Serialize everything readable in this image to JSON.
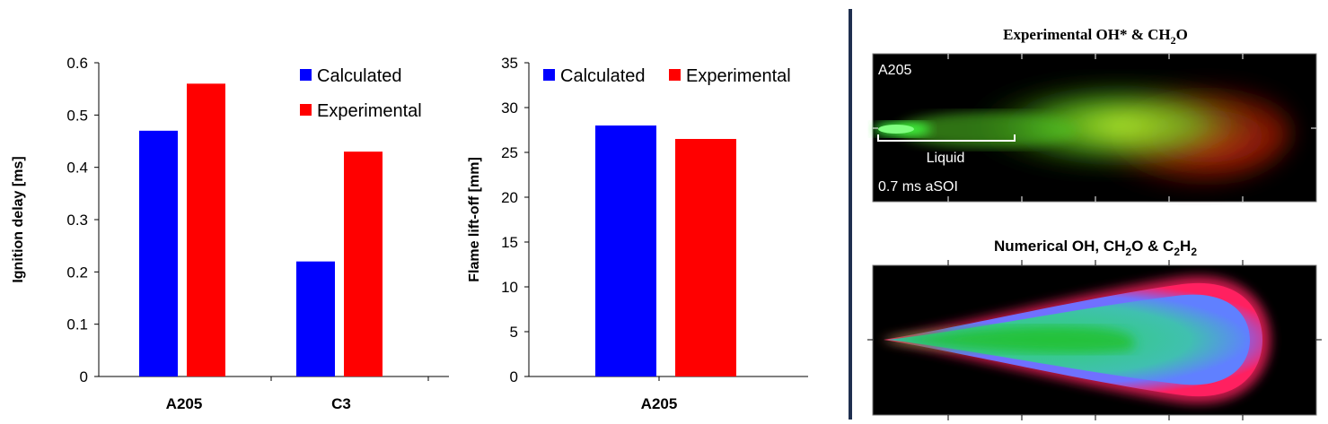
{
  "chart_data": [
    {
      "type": "bar",
      "categories": [
        "A205",
        "C3"
      ],
      "series": [
        {
          "name": "Calculated",
          "color": "#0000ff",
          "values": [
            0.47,
            0.22
          ]
        },
        {
          "name": "Experimental",
          "color": "#ff0000",
          "values": [
            0.56,
            0.43
          ]
        }
      ],
      "xlabel": "",
      "ylabel": "Ignition delay [ms]",
      "ylim": [
        0,
        0.6
      ],
      "yticks": [
        "0",
        "0.1",
        "0.2",
        "0.3",
        "0.4",
        "0.5",
        "0.6"
      ],
      "grid": false,
      "legend_position": "top-right"
    },
    {
      "type": "bar",
      "categories": [
        "A205"
      ],
      "series": [
        {
          "name": "Calculated",
          "color": "#0000ff",
          "values": [
            28
          ]
        },
        {
          "name": "Experimental",
          "color": "#ff0000",
          "values": [
            26.5
          ]
        }
      ],
      "xlabel": "",
      "ylabel": "Flame lift-off [mm]",
      "ylim": [
        0,
        35
      ],
      "yticks": [
        "0",
        "5",
        "10",
        "15",
        "20",
        "25",
        "30",
        "35"
      ],
      "grid": false,
      "legend_position": "top"
    }
  ],
  "images": {
    "experimental": {
      "title_main": "Experimental OH* & CH",
      "title_sub": "2",
      "title_end": "O",
      "corner_label": "A205",
      "liquid_label": "Liquid",
      "time_label": "0.7 ms aSOI"
    },
    "numerical": {
      "title_a": "Numerical OH, CH",
      "title_sub1": "2",
      "title_b": "O & C",
      "title_sub2": "2",
      "title_c": "H",
      "title_sub3": "2"
    }
  }
}
